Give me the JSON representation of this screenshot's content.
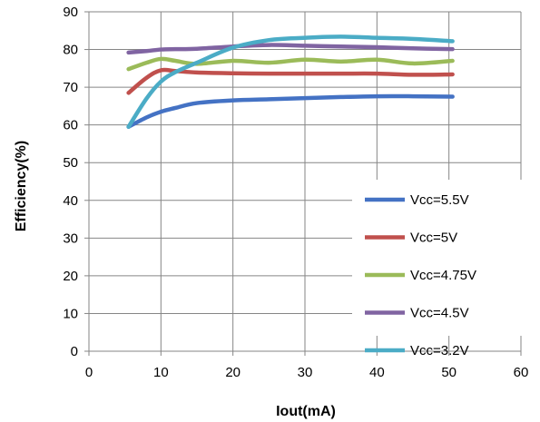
{
  "chart_data": {
    "type": "line",
    "title": "",
    "xlabel": "Iout(mA)",
    "ylabel": "Efficiency(%)",
    "xlim": [
      0,
      60
    ],
    "ylim": [
      0,
      90
    ],
    "x_ticks": [
      "0",
      "10",
      "20",
      "30",
      "40",
      "50",
      "60"
    ],
    "y_ticks": [
      "0",
      "10",
      "20",
      "30",
      "40",
      "50",
      "60",
      "70",
      "80",
      "90"
    ],
    "grid": true,
    "legend_position": "bottom-right",
    "series": [
      {
        "name": "Vcc=5.5V",
        "color": "#4472C4",
        "x": [
          5.5,
          8,
          10,
          12,
          15,
          20,
          25,
          30,
          35,
          40,
          45,
          50.5
        ],
        "y": [
          59.5,
          62,
          63.5,
          64.5,
          65.8,
          66.5,
          66.8,
          67.1,
          67.4,
          67.6,
          67.6,
          67.5
        ]
      },
      {
        "name": "Vcc=5V",
        "color": "#C0504D",
        "x": [
          5.5,
          8,
          10,
          12,
          15,
          20,
          25,
          30,
          35,
          40,
          45,
          50.5
        ],
        "y": [
          68.5,
          72.5,
          74.5,
          74.3,
          73.9,
          73.7,
          73.6,
          73.6,
          73.6,
          73.6,
          73.3,
          73.4
        ]
      },
      {
        "name": "Vcc=4.75V",
        "color": "#9BBB59",
        "x": [
          5.5,
          8,
          10,
          12,
          15,
          20,
          25,
          30,
          35,
          40,
          45,
          50.5
        ],
        "y": [
          74.8,
          76.5,
          77.5,
          77,
          76.2,
          77,
          76.5,
          77.3,
          76.8,
          77.3,
          76.3,
          77
        ]
      },
      {
        "name": "Vcc=4.5V",
        "color": "#8064A2",
        "x": [
          5.5,
          8,
          10,
          12,
          15,
          20,
          25,
          30,
          35,
          40,
          45,
          50.5
        ],
        "y": [
          79.2,
          79.6,
          80,
          80.1,
          80.2,
          80.8,
          81.2,
          81,
          80.8,
          80.6,
          80.3,
          80.1
        ]
      },
      {
        "name": "Vcc=3.2V",
        "color": "#4BACC6",
        "x": [
          5.5,
          8,
          10,
          12,
          15,
          20,
          25,
          30,
          35,
          40,
          45,
          50.5
        ],
        "y": [
          59.5,
          67,
          71.5,
          74,
          76.5,
          80.5,
          82.5,
          83.1,
          83.4,
          83.1,
          82.8,
          82.2
        ]
      }
    ]
  }
}
